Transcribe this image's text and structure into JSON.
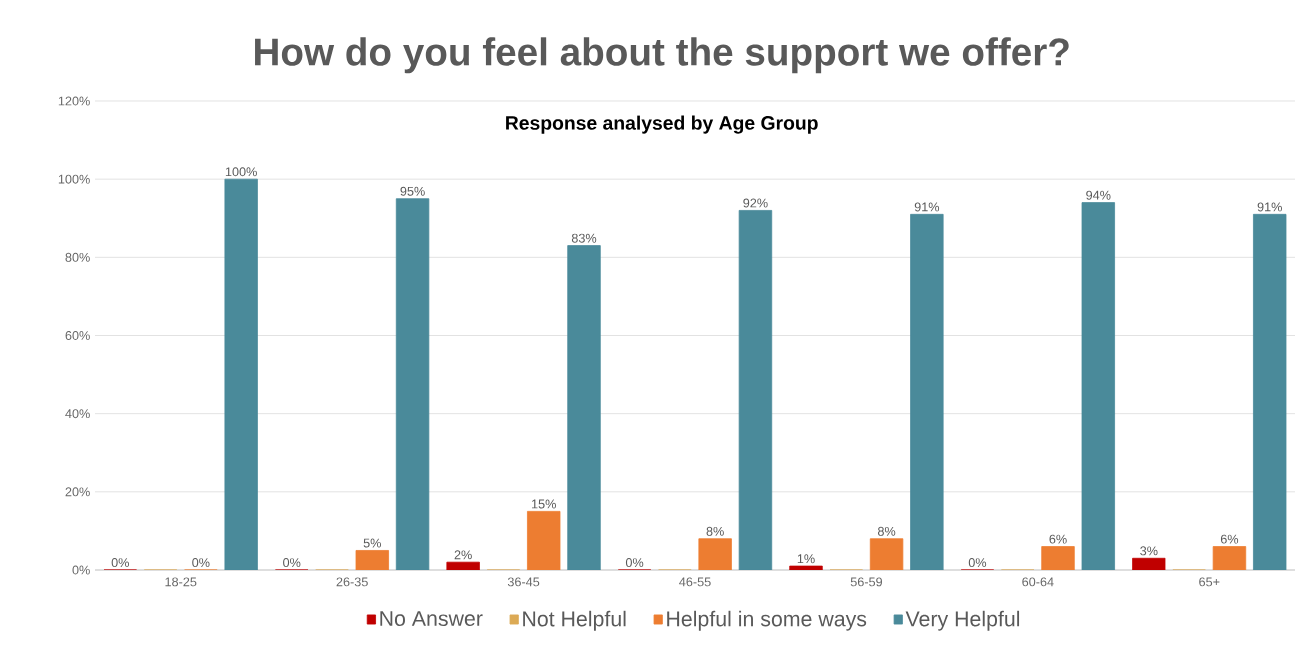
{
  "chart_data": {
    "type": "bar",
    "title": "How do you feel about the support we offer?",
    "subtitle": "Response analysed by Age Group",
    "categories": [
      "18-25",
      "26-35",
      "36-45",
      "46-55",
      "56-59",
      "60-64",
      "65+"
    ],
    "series": [
      {
        "name": "No Answer",
        "color": "#c00000",
        "values": [
          0,
          0,
          2,
          0,
          1,
          0,
          3
        ],
        "value_labels": [
          "0%",
          "0%",
          "2%",
          "0%",
          "1%",
          "0%",
          "3%"
        ]
      },
      {
        "name": "Not Helpful",
        "color": "#dcaa55",
        "values": [
          0,
          0,
          0,
          0,
          0,
          0,
          0
        ],
        "value_labels": [
          null,
          null,
          null,
          null,
          null,
          null,
          null
        ]
      },
      {
        "name": "Helpful in some ways",
        "color": "#ed7d31",
        "values": [
          0,
          5,
          15,
          8,
          8,
          6,
          6
        ],
        "value_labels": [
          "0%",
          "5%",
          "15%",
          "8%",
          "8%",
          "6%",
          "6%"
        ]
      },
      {
        "name": "Very Helpful",
        "color": "#4a8a9a",
        "values": [
          100,
          95,
          83,
          92,
          91,
          94,
          91
        ],
        "value_labels": [
          "100%",
          "95%",
          "83%",
          "92%",
          "91%",
          "94%",
          "91%"
        ]
      }
    ],
    "ylim": [
      0,
      120
    ],
    "yticks": [
      {
        "value": 0,
        "label": "0%"
      },
      {
        "value": 20,
        "label": "20%"
      },
      {
        "value": 40,
        "label": "40%"
      },
      {
        "value": 60,
        "label": "60%"
      },
      {
        "value": 80,
        "label": "80%"
      },
      {
        "value": 100,
        "label": "100%"
      },
      {
        "value": 120,
        "label": "120%"
      }
    ],
    "grid": "y",
    "legend": "bottom"
  }
}
